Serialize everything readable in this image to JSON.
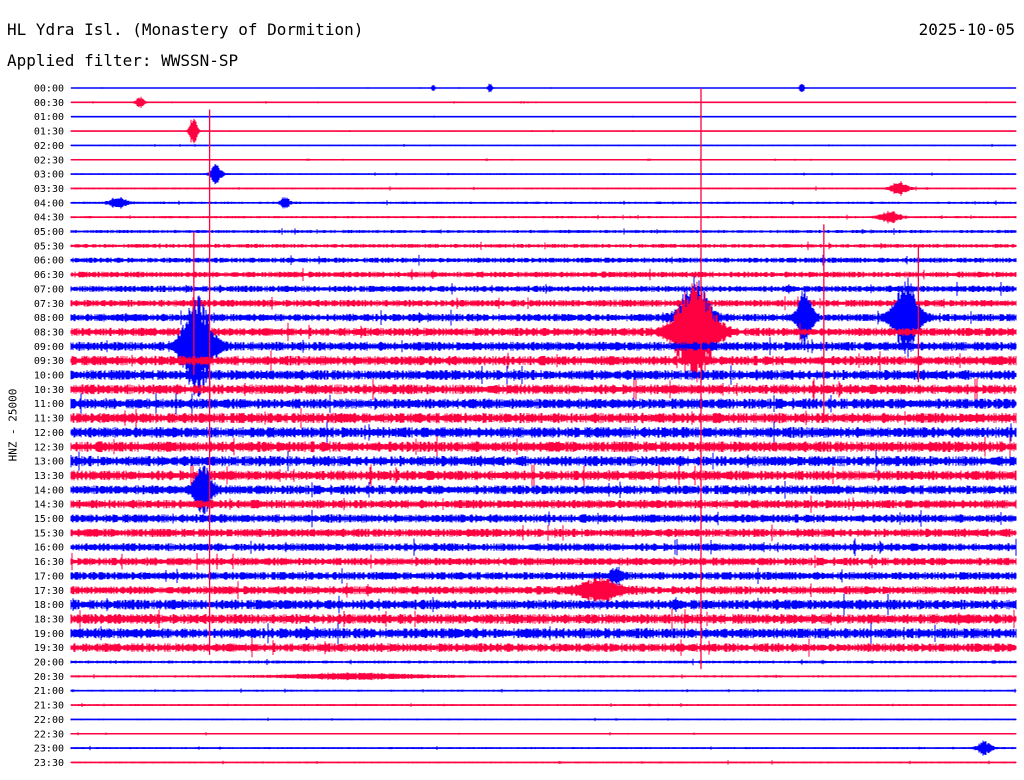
{
  "header": {
    "station": "HL Ydra Isl. (Monastery of Dormition)",
    "date": "2025-10-05",
    "filter": "Applied filter: WWSSN-SP"
  },
  "chart_data": {
    "type": "line",
    "ylabel": "HNZ - 25000",
    "rows": [
      "00:00",
      "00:30",
      "01:00",
      "01:30",
      "02:00",
      "02:30",
      "03:00",
      "03:30",
      "04:00",
      "04:30",
      "05:00",
      "05:30",
      "06:00",
      "06:30",
      "07:00",
      "07:30",
      "08:00",
      "08:30",
      "09:00",
      "09:30",
      "10:00",
      "10:30",
      "11:00",
      "11:30",
      "12:00",
      "12:30",
      "13:00",
      "13:30",
      "14:00",
      "14:30",
      "15:00",
      "15:30",
      "16:00",
      "16:30",
      "17:00",
      "17:30",
      "18:00",
      "18:30",
      "19:00",
      "19:30",
      "20:00",
      "20:30",
      "21:00",
      "21:30",
      "22:00",
      "22:30",
      "23:00",
      "23:30"
    ],
    "series_colors": [
      "#0000ff",
      "#ff0040"
    ],
    "noise_level": [
      0.4,
      0.6,
      0.5,
      0.6,
      0.7,
      0.6,
      0.8,
      1.0,
      1.2,
      1.2,
      1.6,
      2.0,
      2.6,
      3.0,
      3.2,
      3.5,
      3.8,
      4.2,
      4.6,
      4.8,
      5.0,
      5.0,
      5.2,
      5.2,
      5.4,
      5.4,
      5.2,
      5.0,
      4.6,
      4.4,
      4.2,
      4.2,
      4.0,
      4.0,
      4.0,
      4.2,
      5.0,
      5.0,
      5.2,
      4.4,
      1.5,
      1.2,
      1.0,
      1.0,
      0.8,
      0.8,
      1.0,
      1.0
    ],
    "events": [
      {
        "row": 0,
        "minute": 11.5,
        "amp": 4,
        "width": 2
      },
      {
        "row": 0,
        "minute": 13.3,
        "amp": 5,
        "width": 3
      },
      {
        "row": 0,
        "minute": 23.2,
        "amp": 6,
        "width": 3
      },
      {
        "row": 1,
        "minute": 2.2,
        "amp": 6,
        "width": 6
      },
      {
        "row": 3,
        "minute": 3.9,
        "amp": 20,
        "width": 5
      },
      {
        "row": 6,
        "minute": 4.6,
        "amp": 10,
        "width": 8
      },
      {
        "row": 7,
        "minute": 26.3,
        "amp": 7,
        "width": 12
      },
      {
        "row": 8,
        "minute": 1.5,
        "amp": 6,
        "width": 12
      },
      {
        "row": 8,
        "minute": 6.8,
        "amp": 6,
        "width": 6
      },
      {
        "row": 9,
        "minute": 26.0,
        "amp": 6,
        "width": 14
      },
      {
        "row": 16,
        "minute": 19.8,
        "amp": 40,
        "width": 20
      },
      {
        "row": 16,
        "minute": 23.3,
        "amp": 30,
        "width": 10
      },
      {
        "row": 16,
        "minute": 26.5,
        "amp": 38,
        "width": 18
      },
      {
        "row": 17,
        "minute": 19.8,
        "amp": 50,
        "width": 28
      },
      {
        "row": 18,
        "minute": 4.0,
        "amp": 50,
        "width": 20
      },
      {
        "row": 28,
        "minute": 4.2,
        "amp": 25,
        "width": 12
      },
      {
        "row": 35,
        "minute": 16.8,
        "amp": 10,
        "width": 30
      },
      {
        "row": 34,
        "minute": 17.3,
        "amp": 8,
        "width": 8
      },
      {
        "row": 41,
        "minute": 9.0,
        "amp": 3,
        "width": 100
      },
      {
        "row": 46,
        "minute": 29.0,
        "amp": 7,
        "width": 10
      }
    ],
    "spikes": [
      {
        "minute": 20.0,
        "from_row": 0.0,
        "to_row": 40.5
      },
      {
        "minute": 4.4,
        "from_row": 1.5,
        "to_row": 39.5
      },
      {
        "minute": 3.9,
        "from_row": 10.0,
        "to_row": 20.0
      },
      {
        "minute": 23.9,
        "from_row": 9.5,
        "to_row": 23.0
      },
      {
        "minute": 26.9,
        "from_row": 11.0,
        "to_row": 20.5
      }
    ]
  }
}
